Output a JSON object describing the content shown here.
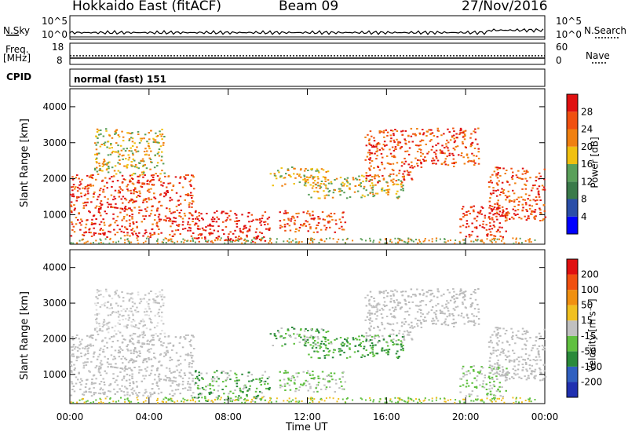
{
  "header": {
    "station": "Hokkaido East (fitACF)",
    "beam": "Beam 09",
    "date": "27/Nov/2016"
  },
  "top_panels": {
    "nsky_label": "N.Sky",
    "nsearch_label": "N.Search",
    "nsky_ticks": [
      "10^5",
      "10^0"
    ],
    "nsearch_ticks": [
      "10^5",
      "10^0"
    ],
    "freq_label_1": "Freq.",
    "freq_label_2": "[MHz]",
    "freq_ticks": [
      "18",
      "8"
    ],
    "nave_label": "Nave",
    "nave_ticks": [
      "60",
      "0"
    ],
    "cpid_label": "CPID",
    "cpid_value": "normal (fast) 151"
  },
  "chart_data": [
    {
      "type": "heatmap",
      "name": "power",
      "ylabel": "Slant Range [km]",
      "ylim": [
        180,
        4500
      ],
      "yticks": [
        "4000",
        "3000",
        "2000",
        "1000"
      ],
      "colorbar_label": "Power [dB]",
      "colorbar_ticks": [
        "28",
        "24",
        "20",
        "16",
        "12",
        "8",
        "4"
      ]
    },
    {
      "type": "heatmap",
      "name": "velocity",
      "ylabel": "Slant Range [km]",
      "ylim": [
        180,
        4500
      ],
      "yticks": [
        "4000",
        "3000",
        "2000",
        "1000"
      ],
      "colorbar_label": "Velocity [m s⁻¹]",
      "colorbar_ticks": [
        "200",
        "100",
        "50",
        "15",
        "-15",
        "-50",
        "-100",
        "-200"
      ]
    }
  ],
  "time_axis": {
    "label": "Time UT",
    "ticks": [
      "00:00",
      "04:00",
      "08:00",
      "12:00",
      "16:00",
      "20:00",
      "00:00"
    ]
  },
  "colors": {
    "power_scale": [
      "#0000ff",
      "#2a4ea8",
      "#3a7a4a",
      "#5aa05a",
      "#f0c010",
      "#f08010",
      "#f05010",
      "#e01010"
    ],
    "velocity_scale": [
      "#2030b0",
      "#3060c0",
      "#2a8a3a",
      "#60c040",
      "#c0c0c0",
      "#f0c020",
      "#f09010",
      "#f05010",
      "#e01010"
    ]
  }
}
